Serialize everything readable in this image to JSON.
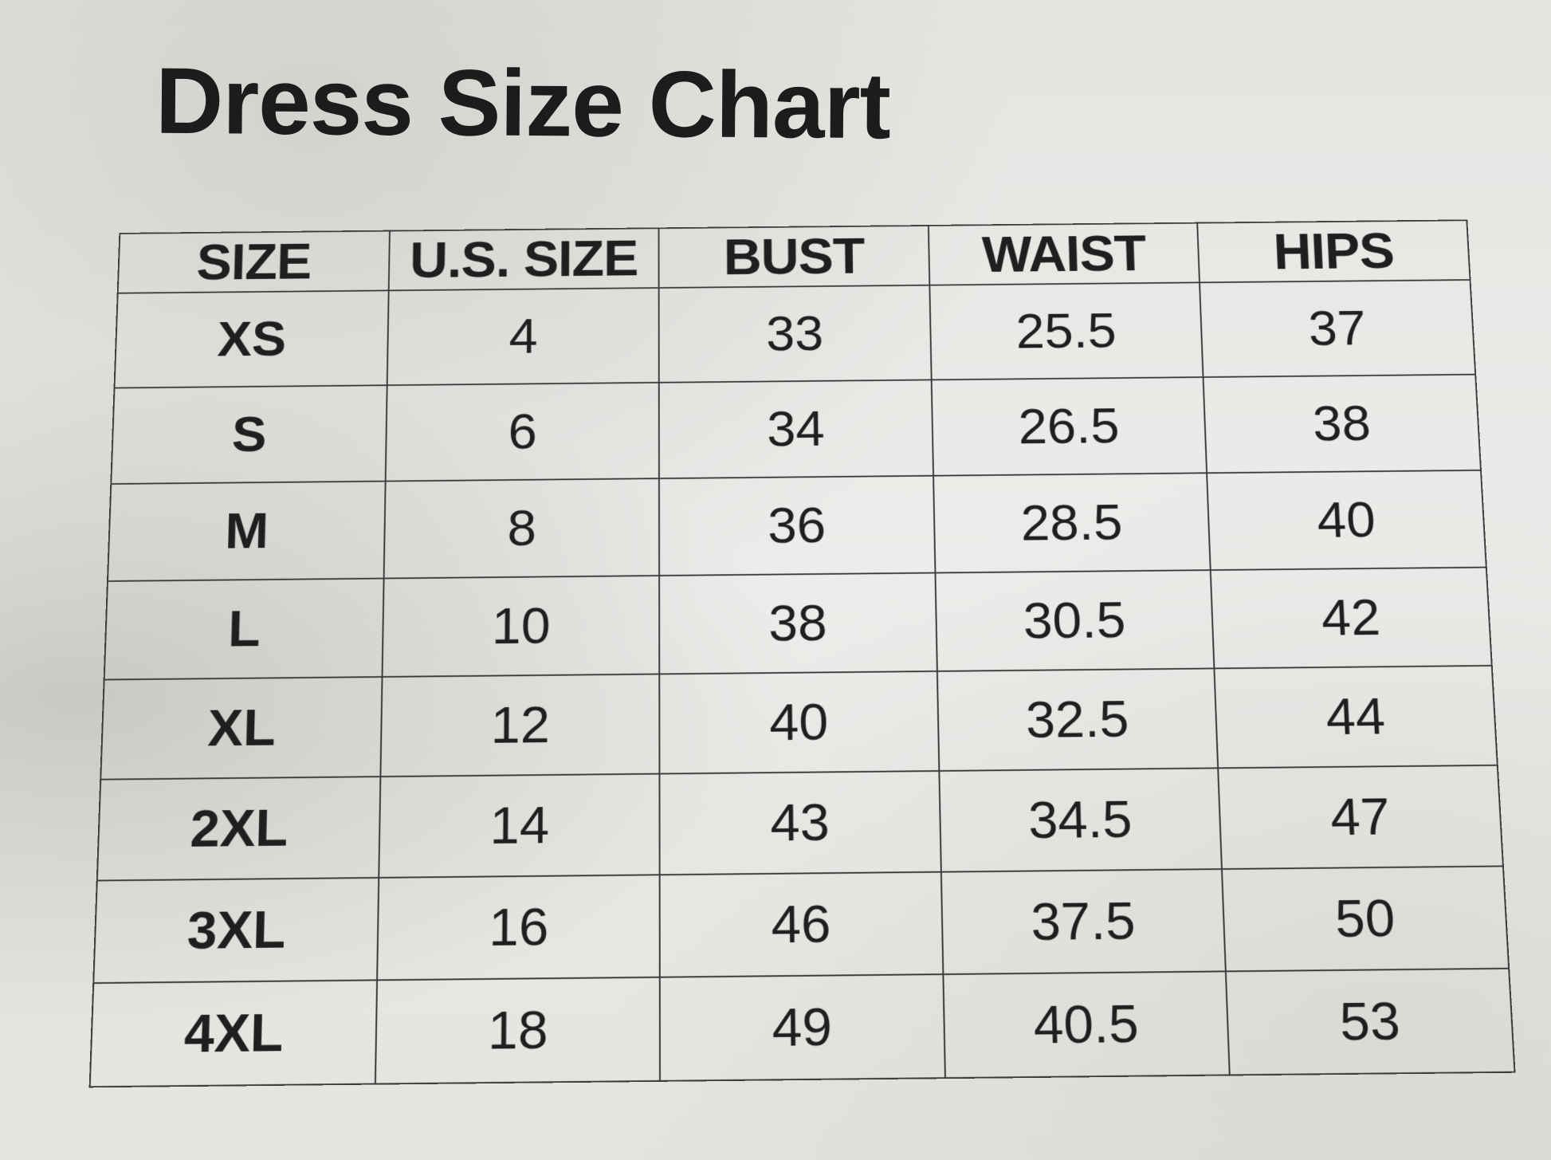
{
  "title": "Dress Size Chart",
  "table": {
    "headers": [
      "SIZE",
      "U.S. SIZE",
      "BUST",
      "WAIST",
      "HIPS"
    ],
    "rows": [
      [
        "XS",
        "4",
        "33",
        "25.5",
        "37"
      ],
      [
        "S",
        "6",
        "34",
        "26.5",
        "38"
      ],
      [
        "M",
        "8",
        "36",
        "28.5",
        "40"
      ],
      [
        "L",
        "10",
        "38",
        "30.5",
        "42"
      ],
      [
        "XL",
        "12",
        "40",
        "32.5",
        "44"
      ],
      [
        "2XL",
        "14",
        "43",
        "34.5",
        "47"
      ],
      [
        "3XL",
        "16",
        "46",
        "37.5",
        "50"
      ],
      [
        "4XL",
        "18",
        "49",
        "40.5",
        "53"
      ]
    ]
  }
}
